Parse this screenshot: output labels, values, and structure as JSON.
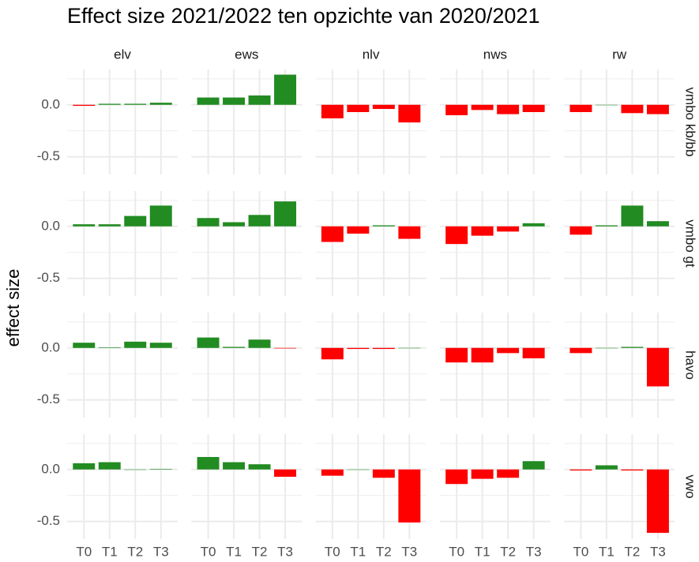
{
  "chart_data": {
    "type": "bar",
    "title": "Effect size 2021/2022 ten opzichte van 2020/2021",
    "ylabel": "effect size",
    "columns": [
      "elv",
      "ews",
      "nlv",
      "nws",
      "rw"
    ],
    "rows": [
      "vmbo kb/bb",
      "vmbo gt",
      "havo",
      "vwo"
    ],
    "categories": [
      "T0",
      "T1",
      "T2",
      "T3"
    ],
    "values": [
      [
        [
          -0.01,
          0.01,
          0.01,
          0.02
        ],
        [
          0.07,
          0.07,
          0.09,
          0.29
        ],
        [
          -0.13,
          -0.07,
          -0.04,
          -0.17
        ],
        [
          -0.1,
          -0.05,
          -0.09,
          -0.07
        ],
        [
          -0.07,
          0,
          -0.08,
          -0.09
        ]
      ],
      [
        [
          0.02,
          0.02,
          0.1,
          0.2
        ],
        [
          0.08,
          0.04,
          0.11,
          0.24
        ],
        [
          -0.15,
          -0.07,
          0.01,
          -0.12
        ],
        [
          -0.17,
          -0.09,
          -0.05,
          0.03
        ],
        [
          -0.08,
          0.01,
          0.2,
          0.05
        ]
      ],
      [
        [
          0.05,
          0.005,
          0.06,
          0.05
        ],
        [
          0.1,
          0.01,
          0.08,
          -0.005
        ],
        [
          -0.11,
          -0.01,
          -0.01,
          0
        ],
        [
          -0.14,
          -0.14,
          -0.05,
          -0.1
        ],
        [
          -0.05,
          0,
          0.01,
          -0.37
        ]
      ],
      [
        [
          0.06,
          0.07,
          0,
          0.005
        ],
        [
          0.12,
          0.07,
          0.05,
          -0.07
        ],
        [
          -0.06,
          0,
          -0.08,
          -0.51
        ],
        [
          -0.14,
          -0.09,
          -0.08,
          0.08
        ],
        [
          -0.01,
          0.04,
          -0.01,
          -0.61
        ]
      ]
    ],
    "positive_color": "#228b22",
    "negative_color": "#ff0000",
    "ylim": [
      -0.67,
      0.34
    ],
    "yticks": [
      {
        "value": 0,
        "label": "0.0"
      },
      -0.5
    ],
    "minor_yticks": [
      -0.25,
      0.25
    ],
    "grid": true
  }
}
